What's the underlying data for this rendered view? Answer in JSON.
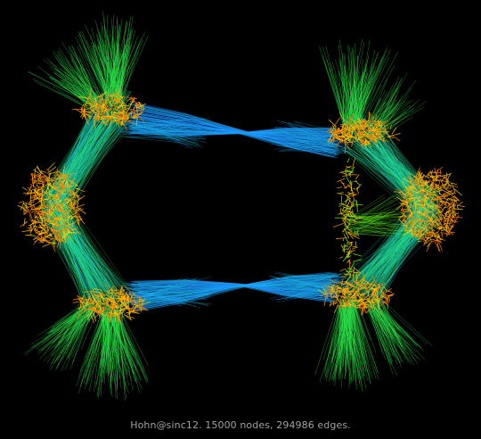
{
  "caption": "Hohn@sinc12. 15000 nodes, 294986 edges.",
  "palette": {
    "background": "#000000",
    "blue": "#1e90ff",
    "cyan": "#19c8e6",
    "teal": "#21e6a4",
    "green": "#2ee84a",
    "lime": "#7fff00",
    "orange": "#ffa100",
    "dark_orange": "#ff7a00",
    "yellow": "#ffd000",
    "caption_text": "#a0a0a0"
  }
}
